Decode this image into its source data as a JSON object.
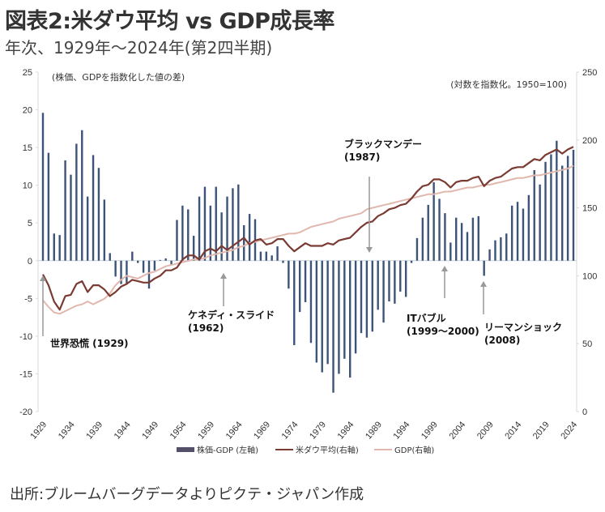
{
  "title": "図表2:米ダウ平均 vs GDP成長率",
  "subtitle": "年次、1929年～2024年(第2四半期)",
  "source": "出所:ブルームバーグデータよりピクテ・ジャパン作成",
  "chart_data": {
    "type": "bar+line",
    "title": "図表2:米ダウ平均 vs GDP成長率",
    "left_axis": {
      "label": "(株価、GDPを指数化した値の差)",
      "range": [
        -20,
        25
      ],
      "ticks": [
        "25",
        "20",
        "15",
        "10",
        "5",
        "0",
        "-5",
        "-10",
        "-15",
        "-20"
      ]
    },
    "right_axis": {
      "label": "(対数を指数化。1950=100)",
      "range": [
        0,
        250
      ],
      "ticks": [
        "250",
        "200",
        "150",
        "100",
        "50",
        "0"
      ]
    },
    "x_tick_labels": [
      "1929",
      "1934",
      "1939",
      "1944",
      "1949",
      "1954",
      "1959",
      "1964",
      "1969",
      "1974",
      "1979",
      "1984",
      "1989",
      "1994",
      "1999",
      "2004",
      "2009",
      "2014",
      "2019",
      "2024"
    ],
    "years": [
      1929,
      1930,
      1931,
      1932,
      1933,
      1934,
      1935,
      1936,
      1937,
      1938,
      1939,
      1940,
      1941,
      1942,
      1943,
      1944,
      1945,
      1946,
      1947,
      1948,
      1949,
      1950,
      1951,
      1952,
      1953,
      1954,
      1955,
      1956,
      1957,
      1958,
      1959,
      1960,
      1961,
      1962,
      1963,
      1964,
      1965,
      1966,
      1967,
      1968,
      1969,
      1970,
      1971,
      1972,
      1973,
      1974,
      1975,
      1976,
      1977,
      1978,
      1979,
      1980,
      1981,
      1982,
      1983,
      1984,
      1985,
      1986,
      1987,
      1988,
      1989,
      1990,
      1991,
      1992,
      1993,
      1994,
      1995,
      1996,
      1997,
      1998,
      1999,
      2000,
      2001,
      2002,
      2003,
      2004,
      2005,
      2006,
      2007,
      2008,
      2009,
      2010,
      2011,
      2012,
      2013,
      2014,
      2015,
      2016,
      2017,
      2018,
      2019,
      2020,
      2021,
      2022,
      2023,
      2024
    ],
    "series": [
      {
        "name": "株価-GDP (左軸)",
        "type": "bar",
        "axis": "left",
        "color": "#3d5478",
        "values": [
          19.6,
          14.3,
          3.6,
          3.4,
          13.3,
          11.4,
          15.5,
          17.3,
          8.5,
          14.0,
          12.3,
          8.1,
          1.0,
          -2.1,
          -3.1,
          -3.0,
          1.2,
          -0.3,
          -1.6,
          -3.7,
          -1.3,
          0.1,
          0.3,
          -0.6,
          5.4,
          7.3,
          6.8,
          3.3,
          8.5,
          9.8,
          7.3,
          9.8,
          6.4,
          8.5,
          9.6,
          10.1,
          4.7,
          6.2,
          5.5,
          1.2,
          1.2,
          0.7,
          1.9,
          -0.3,
          -3.7,
          -11.2,
          -6.8,
          -5.5,
          -10.9,
          -13.5,
          -14.8,
          -13.7,
          -17.5,
          -15.0,
          -13.0,
          -15.5,
          -12.3,
          -9.6,
          -10.2,
          -9.4,
          -6.5,
          -8.2,
          -5.4,
          -5.7,
          -4.1,
          -4.8,
          -0.3,
          3.0,
          5.7,
          7.4,
          10.4,
          8.2,
          6.3,
          2.4,
          5.7,
          5.0,
          3.8,
          5.7,
          5.9,
          -2.0,
          1.5,
          2.7,
          3.1,
          3.6,
          7.3,
          7.8,
          6.9,
          8.7,
          12.0,
          10.1,
          13.1,
          14.1,
          15.9,
          12.6,
          13.9,
          14.7
        ]
      },
      {
        "name": "米ダウ平均(右軸)",
        "type": "line",
        "axis": "right",
        "color": "#7a3b33",
        "values": [
          101,
          93,
          81,
          75,
          85,
          86,
          94,
          96,
          88,
          93,
          93,
          90,
          85,
          88,
          92,
          94,
          97,
          96,
          95,
          95,
          98,
          100,
          104,
          104,
          106,
          112,
          115,
          115,
          112,
          118,
          120,
          118,
          122,
          119,
          122,
          125,
          128,
          123,
          126,
          127,
          123,
          124,
          127,
          127,
          122,
          118,
          121,
          124,
          122,
          122,
          122,
          124,
          123,
          126,
          127,
          128,
          132,
          136,
          139,
          140,
          144,
          146,
          149,
          150,
          152,
          153,
          157,
          162,
          166,
          167,
          171,
          171,
          169,
          165,
          169,
          170,
          170,
          172,
          173,
          166,
          170,
          172,
          173,
          176,
          179,
          180,
          180,
          183,
          186,
          185,
          189,
          191,
          193,
          190,
          193,
          195
        ]
      },
      {
        "name": "GDP(右軸)",
        "type": "line",
        "axis": "right",
        "color": "#e0b8ae",
        "values": [
          82,
          77,
          73,
          72,
          74,
          76,
          78,
          79,
          81,
          79,
          81,
          83,
          87,
          93,
          97,
          100,
          99,
          98,
          100,
          102,
          103,
          105,
          107,
          108,
          109,
          110,
          111,
          112,
          112,
          113,
          115,
          116,
          117,
          118,
          119,
          121,
          122,
          124,
          125,
          126,
          127,
          128,
          129,
          130,
          131,
          131,
          132,
          134,
          136,
          137,
          138,
          139,
          140,
          142,
          143,
          144,
          145,
          146,
          149,
          150,
          151,
          152,
          153,
          154,
          155,
          156,
          157,
          158,
          159,
          160,
          160,
          161,
          162,
          162,
          163,
          164,
          165,
          165,
          166,
          167,
          167,
          168,
          169,
          170,
          171,
          172,
          172,
          173,
          174,
          174,
          175,
          176,
          177,
          178,
          179,
          181
        ]
      }
    ],
    "annotations": [
      {
        "label": "世界恐慌",
        "year_label": "(1929)",
        "year": 1929
      },
      {
        "label": "ケネディ・スライド",
        "year_label": "(1962)",
        "year": 1962
      },
      {
        "label": "ブラックマンデー",
        "year_label": "(1987)",
        "year": 1987
      },
      {
        "label": "ITバブル",
        "year_label": "(1999～2000)",
        "year": 2000
      },
      {
        "label": "リーマンショック",
        "year_label": "(2008)",
        "year": 2008
      }
    ],
    "legend": {
      "placement": "bottom",
      "items": [
        "株価-GDP (左軸)",
        "米ダウ平均(右軸)",
        "GDP(右軸)"
      ]
    },
    "grid": false
  }
}
